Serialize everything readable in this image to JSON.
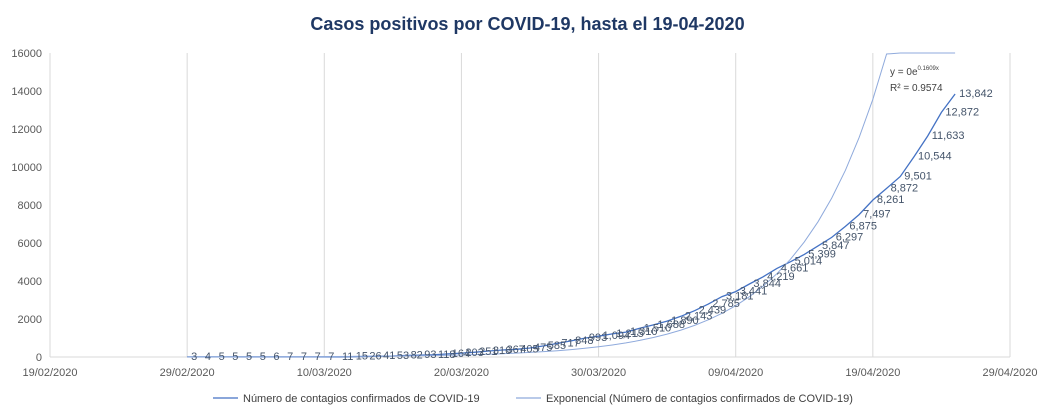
{
  "chart_data": {
    "type": "line",
    "title": "Casos positivos por COVID-19, hasta el 19-04-2020",
    "xlabel": "",
    "ylabel": "",
    "ylim": [
      0,
      16000
    ],
    "yticks": [
      "0",
      "2000",
      "4000",
      "6000",
      "8000",
      "10000",
      "12000",
      "14000",
      "16000"
    ],
    "xticks": [
      "19/02/2020",
      "29/02/2020",
      "10/03/2020",
      "20/03/2020",
      "30/03/2020",
      "09/04/2020",
      "19/04/2020",
      "29/04/2020"
    ],
    "x_start_label": "29/02/2020",
    "series": [
      {
        "name": "Número de contagios confirmados de COVID-19",
        "values": [
          3,
          4,
          5,
          5,
          5,
          5,
          6,
          7,
          7,
          7,
          7,
          11,
          15,
          26,
          41,
          53,
          82,
          93,
          118,
          164,
          203,
          251,
          316,
          367,
          405,
          475,
          585,
          717,
          848,
          993,
          1094,
          1215,
          1310,
          1510,
          1688,
          1890,
          2143,
          2439,
          2785,
          3181,
          3441,
          3844,
          4219,
          4661,
          5014,
          5399,
          5847,
          6297,
          6875,
          7497,
          8261,
          8872,
          9501,
          10544,
          11633,
          12872,
          13842
        ],
        "labels": [
          "3",
          "4",
          "5",
          "5",
          "5",
          "5",
          "6",
          "7",
          "7",
          "7",
          "7",
          "11",
          "15",
          "26",
          "41",
          "53",
          "82",
          "93",
          "118",
          "164",
          "203",
          "251",
          "316",
          "367",
          "405",
          "475",
          "585",
          "717",
          "848",
          "993",
          "1,094",
          "1,215",
          "1,310",
          "1,510",
          "1,688",
          "1,890",
          "2,143",
          "2,439",
          "2,785",
          "3,181",
          "3,441",
          "3,844",
          "4,219",
          "4,661",
          "5,014",
          "5,399",
          "5,847",
          "6,297",
          "6,875",
          "7,497",
          "8,261",
          "8,872",
          "9,501",
          "10,544",
          "11,633",
          "12,872",
          "13,842"
        ]
      },
      {
        "name": "Exponencial (Número de contagios confirmados de COVID-19)",
        "trend": "exponential"
      }
    ],
    "equation": "y = 0e",
    "equation_exp": "0.1609x",
    "r_squared": "R² = 0.9574",
    "legend_position": "bottom",
    "grid": "vertical",
    "colors": {
      "series": "#4472c4",
      "trend": "#8faadc",
      "axis": "#d9d9d9",
      "title": "#1f3864"
    }
  }
}
